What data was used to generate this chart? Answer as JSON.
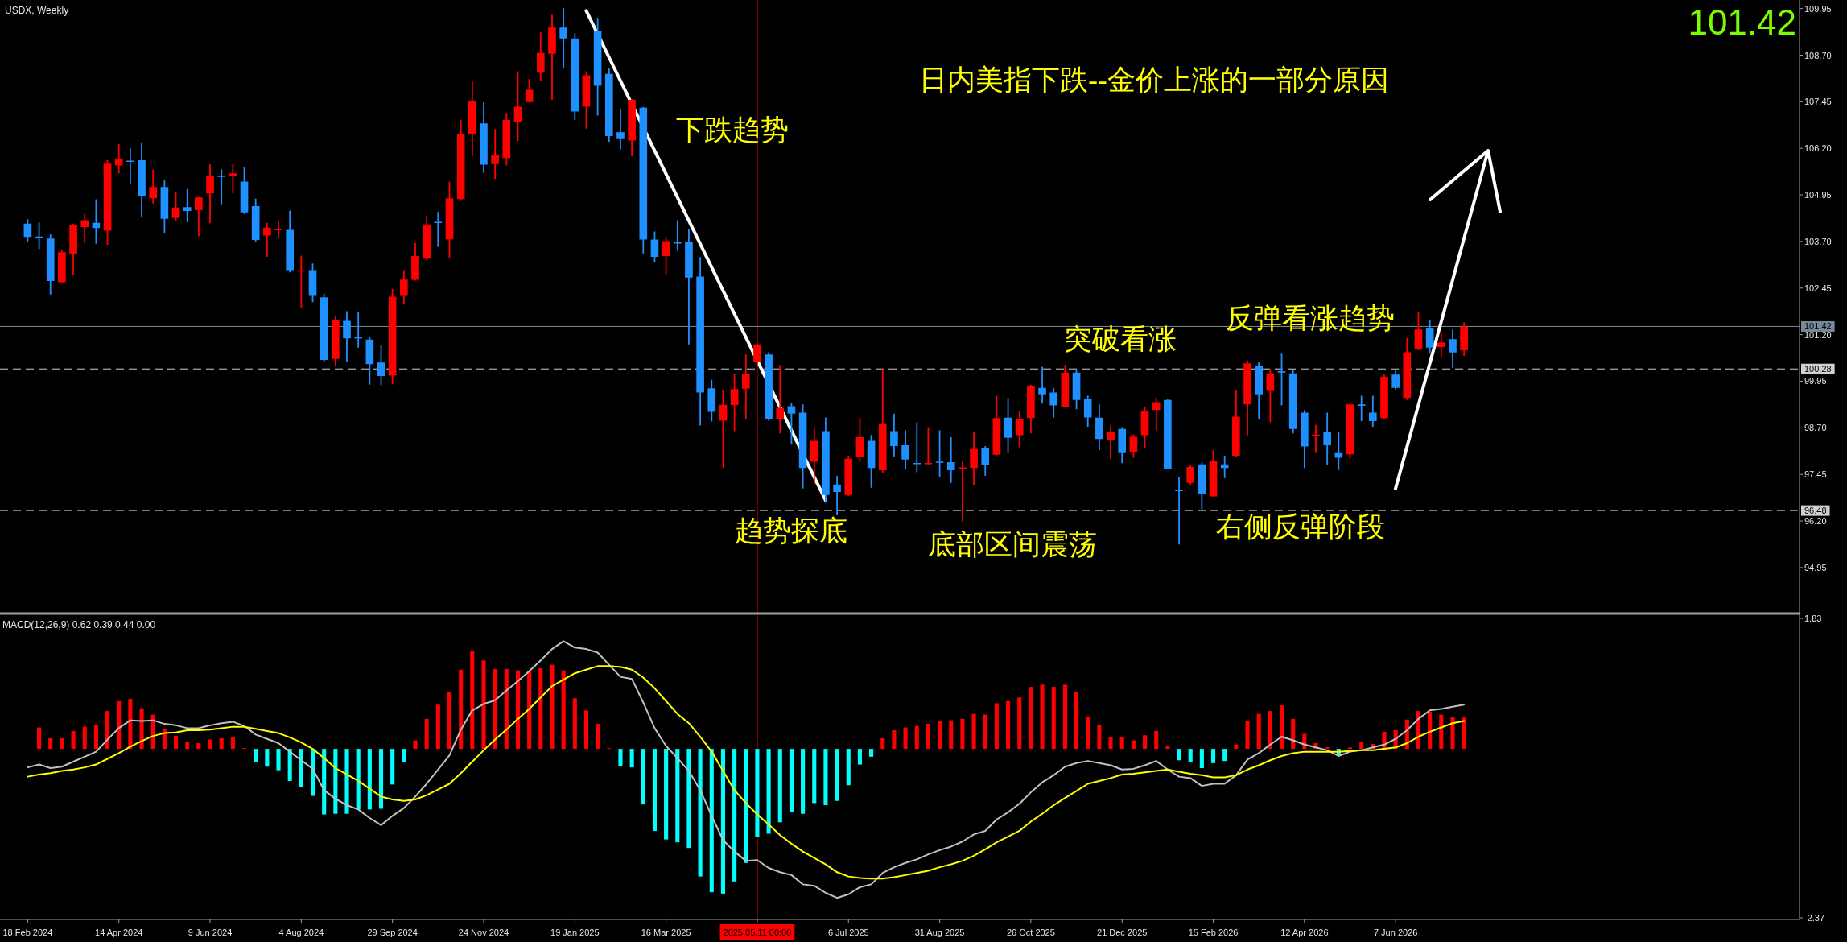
{
  "chart_data": [
    {
      "type": "candlestick",
      "title": "USDX, Weekly",
      "x": [
        "2024-02-18",
        "2024-02-25",
        "2024-03-03",
        "2024-03-10",
        "2024-03-17",
        "2024-03-24",
        "2024-03-31",
        "2024-04-07",
        "2024-04-14",
        "2024-04-21",
        "2024-04-28",
        "2024-05-05",
        "2024-05-12",
        "2024-05-19",
        "2024-05-26",
        "2024-06-02",
        "2024-06-09",
        "2024-06-16",
        "2024-06-23",
        "2024-06-30",
        "2024-07-07",
        "2024-07-14",
        "2024-07-21",
        "2024-07-28",
        "2024-08-04",
        "2024-08-11",
        "2024-08-18",
        "2024-08-25",
        "2024-09-01",
        "2024-09-08",
        "2024-09-15",
        "2024-09-22",
        "2024-09-29",
        "2024-10-06",
        "2024-10-13",
        "2024-10-20",
        "2024-10-27",
        "2024-11-03",
        "2024-11-10",
        "2024-11-17",
        "2024-11-24",
        "2024-12-01",
        "2024-12-08",
        "2024-12-15",
        "2024-12-22",
        "2024-12-29",
        "2025-01-05",
        "2025-01-12",
        "2025-01-19",
        "2025-01-26",
        "2025-02-02",
        "2025-02-09",
        "2025-02-16",
        "2025-02-23",
        "2025-03-02",
        "2025-03-09",
        "2025-03-16",
        "2025-03-23",
        "2025-03-30",
        "2025-04-06",
        "2025-04-13",
        "2025-04-20",
        "2025-04-27",
        "2025-05-04",
        "2025-05-11",
        "2025-05-18",
        "2025-05-25",
        "2025-06-01",
        "2025-06-08",
        "2025-06-15",
        "2025-06-22",
        "2025-06-29",
        "2025-07-06",
        "2025-07-13",
        "2025-07-20",
        "2025-07-27",
        "2025-08-03",
        "2025-08-10",
        "2025-08-17",
        "2025-08-24",
        "2025-08-31",
        "2025-09-07",
        "2025-09-14",
        "2025-09-21",
        "2025-09-28",
        "2025-10-05",
        "2025-10-12",
        "2025-10-19",
        "2025-10-26",
        "2025-11-02",
        "2025-11-09",
        "2025-11-16",
        "2025-11-23",
        "2025-11-30",
        "2025-12-07",
        "2025-12-14",
        "2025-12-21",
        "2025-12-28",
        "2026-01-04",
        "2026-01-11",
        "2026-01-18",
        "2026-01-25",
        "2026-02-01",
        "2026-02-08",
        "2026-02-15",
        "2026-02-22",
        "2026-03-01",
        "2026-03-08",
        "2026-03-15",
        "2026-03-22",
        "2026-03-29",
        "2026-04-05",
        "2026-04-12",
        "2026-04-19",
        "2026-04-26",
        "2026-05-03",
        "2026-05-10",
        "2026-05-17",
        "2026-05-24",
        "2026-05-31",
        "2026-06-07",
        "2026-06-14",
        "2026-06-21",
        "2026-06-28",
        "2026-07-05",
        "2026-07-12",
        "2026-07-19"
      ],
      "ohlc": [
        [
          104.18,
          104.3,
          103.7,
          103.82
        ],
        [
          103.83,
          104.21,
          103.5,
          103.8
        ],
        [
          103.78,
          103.89,
          102.28,
          102.64
        ],
        [
          102.61,
          103.47,
          102.59,
          103.41
        ],
        [
          103.37,
          104.18,
          102.8,
          104.15
        ],
        [
          104.09,
          104.44,
          103.66,
          104.27
        ],
        [
          104.2,
          104.83,
          103.64,
          104.06
        ],
        [
          103.99,
          105.88,
          103.61,
          105.79
        ],
        [
          105.74,
          106.31,
          105.53,
          105.93
        ],
        [
          105.87,
          106.2,
          105.23,
          105.84
        ],
        [
          105.88,
          106.36,
          104.36,
          104.92
        ],
        [
          104.86,
          105.63,
          104.72,
          105.16
        ],
        [
          105.16,
          105.34,
          103.93,
          104.31
        ],
        [
          104.33,
          105.01,
          104.24,
          104.61
        ],
        [
          104.62,
          105.11,
          104.22,
          104.52
        ],
        [
          104.54,
          104.9,
          103.84,
          104.88
        ],
        [
          104.99,
          105.77,
          104.19,
          105.47
        ],
        [
          105.46,
          105.64,
          104.7,
          105.44
        ],
        [
          105.45,
          105.77,
          104.99,
          105.53
        ],
        [
          105.31,
          105.71,
          104.44,
          104.48
        ],
        [
          104.65,
          104.85,
          103.69,
          103.74
        ],
        [
          103.86,
          104.2,
          103.29,
          104.07
        ],
        [
          104.01,
          104.26,
          103.79,
          104.03
        ],
        [
          104.01,
          104.53,
          102.87,
          102.93
        ],
        [
          102.9,
          103.32,
          101.93,
          102.92
        ],
        [
          102.93,
          103.11,
          102.07,
          102.24
        ],
        [
          102.2,
          102.3,
          100.46,
          100.52
        ],
        [
          100.55,
          101.69,
          100.36,
          101.6
        ],
        [
          101.57,
          101.83,
          100.46,
          101.1
        ],
        [
          101.13,
          101.8,
          100.85,
          101.11
        ],
        [
          101.07,
          101.15,
          99.86,
          100.41
        ],
        [
          100.45,
          100.91,
          99.84,
          100.09
        ],
        [
          100.1,
          102.43,
          99.87,
          102.22
        ],
        [
          102.24,
          102.93,
          102.01,
          102.68
        ],
        [
          102.67,
          103.66,
          102.65,
          103.31
        ],
        [
          103.24,
          104.39,
          103.19,
          104.16
        ],
        [
          104.22,
          104.49,
          103.55,
          104.2
        ],
        [
          103.76,
          105.31,
          103.24,
          104.86
        ],
        [
          104.84,
          106.96,
          104.8,
          106.59
        ],
        [
          106.58,
          108.02,
          105.99,
          107.48
        ],
        [
          106.87,
          107.43,
          105.54,
          105.76
        ],
        [
          105.78,
          106.72,
          105.38,
          106.01
        ],
        [
          105.94,
          107.15,
          105.74,
          106.96
        ],
        [
          106.9,
          108.27,
          106.4,
          107.32
        ],
        [
          107.44,
          108.06,
          107.43,
          107.77
        ],
        [
          108.23,
          109.31,
          108.02,
          108.76
        ],
        [
          108.74,
          109.78,
          107.5,
          109.44
        ],
        [
          109.44,
          109.97,
          108.35,
          109.15
        ],
        [
          109.15,
          109.29,
          106.96,
          107.19
        ],
        [
          107.32,
          108.27,
          106.73,
          108.16
        ],
        [
          109.35,
          109.7,
          107.08,
          107.88
        ],
        [
          108.2,
          108.35,
          106.38,
          106.53
        ],
        [
          106.63,
          107.24,
          106.17,
          106.45
        ],
        [
          106.41,
          107.52,
          105.99,
          107.5
        ],
        [
          107.29,
          107.31,
          103.38,
          103.75
        ],
        [
          103.75,
          103.97,
          103.13,
          103.29
        ],
        [
          103.31,
          103.82,
          102.8,
          103.71
        ],
        [
          103.67,
          104.27,
          103.45,
          103.65
        ],
        [
          103.69,
          104.02,
          100.94,
          102.73
        ],
        [
          102.76,
          103.28,
          98.76,
          99.65
        ],
        [
          99.76,
          99.99,
          98.87,
          99.13
        ],
        [
          98.89,
          99.71,
          97.62,
          99.32
        ],
        [
          99.31,
          100.15,
          98.61,
          99.74
        ],
        [
          99.75,
          100.67,
          98.93,
          100.14
        ],
        [
          100.46,
          100.96,
          100.36,
          100.94
        ],
        [
          100.67,
          100.73,
          98.89,
          98.94
        ],
        [
          98.94,
          100.39,
          98.55,
          99.23
        ],
        [
          99.28,
          99.37,
          98.25,
          99.08
        ],
        [
          99.11,
          99.33,
          97.07,
          97.62
        ],
        [
          97.79,
          98.72,
          97.17,
          98.35
        ],
        [
          98.61,
          98.98,
          96.69,
          96.9
        ],
        [
          97.18,
          97.41,
          96.35,
          96.98
        ],
        [
          96.9,
          97.95,
          96.87,
          97.87
        ],
        [
          97.93,
          98.97,
          97.79,
          98.45
        ],
        [
          98.35,
          98.51,
          97.09,
          97.62
        ],
        [
          97.56,
          100.28,
          97.48,
          98.8
        ],
        [
          98.61,
          99.08,
          97.92,
          98.21
        ],
        [
          98.23,
          98.63,
          97.58,
          97.85
        ],
        [
          97.75,
          98.84,
          97.51,
          97.73
        ],
        [
          97.73,
          98.72,
          97.69,
          97.75
        ],
        [
          97.79,
          98.63,
          97.38,
          97.77
        ],
        [
          97.78,
          98.45,
          97.22,
          97.56
        ],
        [
          97.61,
          97.79,
          96.19,
          97.63
        ],
        [
          97.62,
          98.6,
          97.17,
          98.13
        ],
        [
          98.15,
          98.21,
          97.41,
          97.69
        ],
        [
          97.98,
          99.56,
          97.96,
          98.96
        ],
        [
          98.97,
          99.5,
          98.02,
          98.43
        ],
        [
          98.5,
          99.16,
          98.18,
          98.93
        ],
        [
          98.96,
          99.86,
          98.55,
          99.81
        ],
        [
          99.77,
          100.34,
          99.35,
          99.6
        ],
        [
          99.65,
          99.76,
          98.97,
          99.3
        ],
        [
          99.27,
          100.39,
          99.26,
          100.18
        ],
        [
          100.18,
          100.24,
          99.2,
          99.45
        ],
        [
          99.47,
          99.56,
          98.73,
          98.98
        ],
        [
          98.97,
          99.33,
          98.1,
          98.4
        ],
        [
          98.38,
          98.75,
          97.87,
          98.59
        ],
        [
          98.67,
          98.72,
          97.75,
          98.02
        ],
        [
          98.04,
          98.52,
          97.9,
          98.46
        ],
        [
          98.5,
          99.27,
          98.14,
          99.14
        ],
        [
          99.18,
          99.5,
          98.63,
          99.39
        ],
        [
          99.45,
          99.47,
          97.59,
          97.6
        ],
        [
          97.03,
          97.37,
          95.57,
          97.01
        ],
        [
          97.22,
          97.69,
          97.16,
          97.65
        ],
        [
          97.72,
          97.77,
          96.52,
          96.92
        ],
        [
          96.86,
          98.1,
          96.85,
          97.8
        ],
        [
          97.72,
          97.95,
          97.35,
          97.62
        ],
        [
          97.95,
          99.71,
          97.92,
          99.0
        ],
        [
          99.33,
          100.51,
          98.5,
          100.43
        ],
        [
          100.37,
          100.48,
          98.93,
          99.6
        ],
        [
          99.69,
          100.28,
          98.85,
          100.16
        ],
        [
          100.21,
          100.69,
          99.3,
          100.19
        ],
        [
          100.16,
          100.24,
          98.55,
          98.67
        ],
        [
          99.11,
          99.18,
          97.62,
          98.2
        ],
        [
          98.49,
          98.78,
          98.02,
          98.51
        ],
        [
          98.58,
          99.11,
          97.71,
          98.23
        ],
        [
          98.02,
          98.58,
          97.57,
          97.9
        ],
        [
          97.99,
          99.35,
          97.87,
          99.33
        ],
        [
          99.32,
          99.56,
          98.88,
          99.3
        ],
        [
          99.11,
          99.56,
          98.73,
          98.88
        ],
        [
          98.96,
          100.13,
          98.93,
          100.07
        ],
        [
          100.13,
          100.28,
          99.71,
          99.77
        ],
        [
          99.5,
          101.11,
          99.45,
          100.73
        ],
        [
          100.81,
          101.82,
          100.78,
          101.34
        ],
        [
          101.37,
          101.59,
          100.69,
          100.85
        ],
        [
          100.87,
          101.26,
          100.58,
          100.99
        ],
        [
          101.08,
          101.34,
          100.31,
          100.72
        ],
        [
          100.78,
          101.52,
          100.63,
          101.42
        ]
      ],
      "colors": [
        "#1e90ff",
        "#1e90ff",
        "#1e90ff",
        "#ff0000",
        "#ff0000",
        "#ff0000",
        "#1e90ff",
        "#ff0000",
        "#ff0000",
        "#1e90ff",
        "#1e90ff",
        "#ff0000",
        "#1e90ff",
        "#ff0000",
        "#1e90ff",
        "#ff0000",
        "#ff0000",
        "#1e90ff",
        "#ff0000",
        "#1e90ff",
        "#1e90ff",
        "#ff0000",
        "#ff0000",
        "#1e90ff",
        "#ff0000",
        "#1e90ff",
        "#1e90ff",
        "#ff0000",
        "#1e90ff",
        "#1e90ff",
        "#1e90ff",
        "#1e90ff",
        "#ff0000",
        "#ff0000",
        "#ff0000",
        "#ff0000",
        "#1e90ff",
        "#ff0000",
        "#ff0000",
        "#ff0000",
        "#1e90ff",
        "#ff0000",
        "#ff0000",
        "#ff0000",
        "#ff0000",
        "#ff0000",
        "#ff0000",
        "#1e90ff",
        "#1e90ff",
        "#ff0000",
        "#1e90ff",
        "#1e90ff",
        "#1e90ff",
        "#ff0000",
        "#1e90ff",
        "#1e90ff",
        "#ff0000",
        "#1e90ff",
        "#1e90ff",
        "#1e90ff",
        "#1e90ff",
        "#ff0000",
        "#ff0000",
        "#ff0000",
        "#ff0000",
        "#1e90ff",
        "#ff0000",
        "#1e90ff",
        "#1e90ff",
        "#ff0000",
        "#1e90ff",
        "#1e90ff",
        "#ff0000",
        "#ff0000",
        "#1e90ff",
        "#ff0000",
        "#1e90ff",
        "#1e90ff",
        "#1e90ff",
        "#ff0000",
        "#1e90ff",
        "#1e90ff",
        "#ff0000",
        "#ff0000",
        "#1e90ff",
        "#ff0000",
        "#1e90ff",
        "#ff0000",
        "#ff0000",
        "#1e90ff",
        "#1e90ff",
        "#ff0000",
        "#1e90ff",
        "#1e90ff",
        "#1e90ff",
        "#ff0000",
        "#1e90ff",
        "#ff0000",
        "#ff0000",
        "#ff0000",
        "#1e90ff",
        "#1e90ff",
        "#ff0000",
        "#1e90ff",
        "#ff0000",
        "#1e90ff",
        "#ff0000",
        "#ff0000",
        "#1e90ff",
        "#ff0000",
        "#1e90ff",
        "#1e90ff",
        "#1e90ff",
        "#ff0000",
        "#1e90ff",
        "#1e90ff",
        "#ff0000",
        "#1e90ff",
        "#1e90ff",
        "#ff0000",
        "#1e90ff",
        "#ff0000",
        "#ff0000",
        "#1e90ff",
        "#ff0000",
        "#1e90ff",
        "#ff0000"
      ],
      "xlim": [
        "2024-02-01",
        "2027-02-10"
      ],
      "ylim": [
        93.76,
        110.18
      ],
      "yticks": [
        109.95,
        {
          "value": 108.7,
          "label": "108.70"
        },
        107.45,
        {
          "value": 106.2,
          "label": "106.20"
        },
        104.95,
        {
          "value": 103.7,
          "label": "103.70"
        },
        102.45,
        {
          "value": 101.2,
          "label": "101.20"
        },
        99.95,
        {
          "value": 98.7,
          "label": "98.70"
        },
        97.45,
        {
          "value": 96.2,
          "label": "96.20"
        },
        94.95
      ],
      "tick_labels": "y",
      "ref_lines": [
        {
          "axis": "x",
          "value": "2025-05-11",
          "color": "#ff0000"
        },
        {
          "axis": "y",
          "value": 101.42,
          "label": "101.42",
          "color": "#778899"
        },
        {
          "axis": "y",
          "value": 100.28,
          "label": "100.28",
          "color": "#d0d0d0",
          "line_style": "dashed"
        },
        {
          "axis": "y",
          "value": 96.48,
          "label": "96.48",
          "color": "#d0d0d0",
          "line_style": "dashed"
        }
      ],
      "series": [
        {
          "type": "line",
          "x": [
            "2025-01-26",
            "2025-06-22"
          ],
          "values": [
            109.89,
            96.75
          ],
          "color": "#ffffff"
        }
      ],
      "annotations": [
        "101.42",
        "日内美指下跌--金价上涨的一部分原因",
        "下跌趋势",
        "反弹看涨趋势",
        "突破看涨",
        "右侧反弹阶段",
        "趋势探底",
        "底部区间震荡"
      ]
    },
    {
      "type": "bar",
      "title": "MACD(12,26,9) 0.62 0.39 0.44 0.00",
      "x": [
        "2024-02-18",
        "2024-02-25",
        "2024-03-03",
        "2024-03-10",
        "2024-03-17",
        "2024-03-24",
        "2024-03-31",
        "2024-04-07",
        "2024-04-14",
        "2024-04-21",
        "2024-04-28",
        "2024-05-05",
        "2024-05-12",
        "2024-05-19",
        "2024-05-26",
        "2024-06-02",
        "2024-06-09",
        "2024-06-16",
        "2024-06-23",
        "2024-06-30",
        "2024-07-07",
        "2024-07-14",
        "2024-07-21",
        "2024-07-28",
        "2024-08-04",
        "2024-08-11",
        "2024-08-18",
        "2024-08-25",
        "2024-09-01",
        "2024-09-08",
        "2024-09-15",
        "2024-09-22",
        "2024-09-29",
        "2024-10-06",
        "2024-10-13",
        "2024-10-20",
        "2024-10-27",
        "2024-11-03",
        "2024-11-10",
        "2024-11-17",
        "2024-11-24",
        "2024-12-01",
        "2024-12-08",
        "2024-12-15",
        "2024-12-22",
        "2024-12-29",
        "2025-01-05",
        "2025-01-12",
        "2025-01-19",
        "2025-01-26",
        "2025-02-02",
        "2025-02-09",
        "2025-02-16",
        "2025-02-23",
        "2025-03-02",
        "2025-03-09",
        "2025-03-16",
        "2025-03-23",
        "2025-03-30",
        "2025-04-06",
        "2025-04-13",
        "2025-04-20",
        "2025-04-27",
        "2025-05-04",
        "2025-05-11",
        "2025-05-18",
        "2025-05-25",
        "2025-06-01",
        "2025-06-08",
        "2025-06-15",
        "2025-06-22",
        "2025-06-29",
        "2025-07-06",
        "2025-07-13",
        "2025-07-20",
        "2025-07-27",
        "2025-08-03",
        "2025-08-10",
        "2025-08-17",
        "2025-08-24",
        "2025-08-31",
        "2025-09-07",
        "2025-09-14",
        "2025-09-21",
        "2025-09-28",
        "2025-10-05",
        "2025-10-12",
        "2025-10-19",
        "2025-10-26",
        "2025-11-02",
        "2025-11-09",
        "2025-11-16",
        "2025-11-23",
        "2025-11-30",
        "2025-12-07",
        "2025-12-14",
        "2025-12-21",
        "2025-12-28",
        "2026-01-04",
        "2026-01-11",
        "2026-01-18",
        "2026-01-25",
        "2026-02-01",
        "2026-02-08",
        "2026-02-15",
        "2026-02-22",
        "2026-03-01",
        "2026-03-08",
        "2026-03-15",
        "2026-03-22",
        "2026-03-29",
        "2026-04-05",
        "2026-04-12",
        "2026-04-19",
        "2026-04-26",
        "2026-05-03",
        "2026-05-10",
        "2026-05-17",
        "2026-05-24",
        "2026-05-31",
        "2026-06-07",
        "2026-06-14",
        "2026-06-21",
        "2026-06-28",
        "2026-07-05",
        "2026-07-12",
        "2026-07-19"
      ],
      "xlim": [
        "2024-02-01",
        "2027-02-10"
      ],
      "ylim": [
        -2.37,
        1.83
      ],
      "yticks": [
        1.83,
        -2.37
      ],
      "xticks": [
        {
          "value": "2024-02-18",
          "label": "18 Feb 2024"
        },
        {
          "value": "2024-04-14",
          "label": "14 Apr 2024"
        },
        {
          "value": "2024-06-09",
          "label": "9 Jun 2024"
        },
        {
          "value": "2024-08-04",
          "label": "4 Aug 2024"
        },
        {
          "value": "2024-09-29",
          "label": "29 Sep 2024"
        },
        {
          "value": "2024-11-24",
          "label": "24 Nov 2024"
        },
        {
          "value": "2025-01-19",
          "label": "19 Jan 2025"
        },
        {
          "value": "2025-03-16",
          "label": "16 Mar 2025"
        },
        {
          "value": "2025-05-11",
          "label": null
        },
        {
          "value": "2025-07-06",
          "label": "6 Jul 2025"
        },
        {
          "value": "2025-08-31",
          "label": "31 Aug 2025"
        },
        {
          "value": "2025-10-26",
          "label": "26 Oct 2025"
        },
        {
          "value": "2025-12-21",
          "label": "21 Dec 2025"
        },
        {
          "value": "2026-02-15",
          "label": "15 Feb 2026"
        },
        {
          "value": "2026-04-12",
          "label": "12 Apr 2026"
        },
        {
          "value": "2026-06-07",
          "label": "7 Jun 2026"
        }
      ],
      "ref_lines": [
        {
          "axis": "x",
          "value": "2025-05-11",
          "label": "2025.05.11 00:00",
          "color": "#ff0000"
        }
      ],
      "series": [
        {
          "type": "bar",
          "values": [
            null,
            0.3,
            0.15,
            0.15,
            0.25,
            0.31,
            0.33,
            0.53,
            0.67,
            0.7,
            0.57,
            0.48,
            0.28,
            0.18,
            0.1,
            0.08,
            0.13,
            0.15,
            0.16,
            0.01,
            -0.18,
            -0.25,
            -0.3,
            -0.45,
            -0.54,
            -0.66,
            -0.92,
            -0.91,
            -0.91,
            -0.85,
            -0.85,
            -0.84,
            -0.5,
            -0.18,
            0.12,
            0.42,
            0.62,
            0.8,
            1.11,
            1.37,
            1.24,
            1.12,
            1.12,
            1.1,
            1.08,
            1.13,
            1.18,
            1.1,
            0.71,
            0.54,
            0.35,
            0.01,
            -0.24,
            -0.26,
            -0.78,
            -1.15,
            -1.27,
            -1.31,
            -1.39,
            -1.79,
            -2.01,
            -2.03,
            -1.86,
            -1.6,
            -1.24,
            -1.19,
            -1.03,
            -0.88,
            -0.91,
            -0.76,
            -0.79,
            -0.73,
            -0.51,
            -0.22,
            -0.11,
            0.15,
            0.26,
            0.3,
            0.32,
            0.35,
            0.39,
            0.4,
            0.42,
            0.49,
            0.48,
            0.64,
            0.67,
            0.72,
            0.87,
            0.9,
            0.87,
            0.9,
            0.8,
            0.45,
            0.34,
            0.17,
            0.17,
            0.12,
            0.19,
            0.25,
            0.04,
            -0.16,
            -0.18,
            -0.27,
            -0.2,
            -0.17,
            0.06,
            0.39,
            0.49,
            0.53,
            0.61,
            0.42,
            0.21,
            0.08,
            0.02,
            -0.1,
            0.02,
            0.1,
            0.07,
            0.24,
            0.26,
            0.41,
            0.53,
            0.52,
            0.48,
            0.44,
            0.44
          ],
          "colors": [
            null,
            "#ff0000",
            "#ff0000",
            "#ff0000",
            "#ff0000",
            "#ff0000",
            "#ff0000",
            "#ff0000",
            "#ff0000",
            "#ff0000",
            "#ff0000",
            "#ff0000",
            "#ff0000",
            "#ff0000",
            "#ff0000",
            "#ff0000",
            "#ff0000",
            "#ff0000",
            "#ff0000",
            "#ff0000",
            "#00ffff",
            "#00ffff",
            "#00ffff",
            "#00ffff",
            "#00ffff",
            "#00ffff",
            "#00ffff",
            "#00ffff",
            "#00ffff",
            "#00ffff",
            "#00ffff",
            "#00ffff",
            "#00ffff",
            "#00ffff",
            "#ff0000",
            "#ff0000",
            "#ff0000",
            "#ff0000",
            "#ff0000",
            "#ff0000",
            "#ff0000",
            "#ff0000",
            "#ff0000",
            "#ff0000",
            "#ff0000",
            "#ff0000",
            "#ff0000",
            "#ff0000",
            "#ff0000",
            "#ff0000",
            "#ff0000",
            "#ff0000",
            "#00ffff",
            "#00ffff",
            "#00ffff",
            "#00ffff",
            "#00ffff",
            "#00ffff",
            "#00ffff",
            "#00ffff",
            "#00ffff",
            "#00ffff",
            "#00ffff",
            "#00ffff",
            "#00ffff",
            "#00ffff",
            "#00ffff",
            "#00ffff",
            "#00ffff",
            "#00ffff",
            "#00ffff",
            "#00ffff",
            "#00ffff",
            "#00ffff",
            "#00ffff",
            "#ff0000",
            "#ff0000",
            "#ff0000",
            "#ff0000",
            "#ff0000",
            "#ff0000",
            "#ff0000",
            "#ff0000",
            "#ff0000",
            "#ff0000",
            "#ff0000",
            "#ff0000",
            "#ff0000",
            "#ff0000",
            "#ff0000",
            "#ff0000",
            "#ff0000",
            "#ff0000",
            "#ff0000",
            "#ff0000",
            "#ff0000",
            "#ff0000",
            "#ff0000",
            "#ff0000",
            "#ff0000",
            "#ff0000",
            "#00ffff",
            "#00ffff",
            "#00ffff",
            "#00ffff",
            "#00ffff",
            "#ff0000",
            "#ff0000",
            "#ff0000",
            "#ff0000",
            "#ff0000",
            "#ff0000",
            "#ff0000",
            "#ff0000",
            "#ff0000",
            "#00ffff",
            "#ff0000",
            "#ff0000",
            "#ff0000",
            "#ff0000",
            "#ff0000",
            "#ff0000",
            "#ff0000",
            "#ff0000",
            "#ff0000",
            "#ff0000",
            "#ff0000"
          ]
        },
        {
          "type": "line",
          "color": "#c0c0c0",
          "values": [
            -0.26,
            -0.22,
            -0.27,
            -0.25,
            -0.18,
            -0.11,
            -0.04,
            0.13,
            0.29,
            0.4,
            0.39,
            0.4,
            0.35,
            0.33,
            0.29,
            0.29,
            0.33,
            0.36,
            0.38,
            0.32,
            0.2,
            0.14,
            0.08,
            -0.04,
            -0.16,
            -0.28,
            -0.58,
            -0.7,
            -0.79,
            -0.85,
            -0.97,
            -1.07,
            -0.94,
            -0.83,
            -0.67,
            -0.49,
            -0.29,
            -0.09,
            0.27,
            0.54,
            0.63,
            0.68,
            0.82,
            0.95,
            1.09,
            1.24,
            1.4,
            1.51,
            1.42,
            1.4,
            1.35,
            1.18,
            1.01,
            0.98,
            0.65,
            0.29,
            0.04,
            -0.13,
            -0.31,
            -0.58,
            -0.94,
            -1.28,
            -1.44,
            -1.57,
            -1.56,
            -1.67,
            -1.73,
            -1.77,
            -1.9,
            -1.92,
            -2.02,
            -2.09,
            -2.04,
            -1.94,
            -1.9,
            -1.74,
            -1.66,
            -1.6,
            -1.55,
            -1.48,
            -1.42,
            -1.37,
            -1.3,
            -1.2,
            -1.15,
            -0.99,
            -0.89,
            -0.77,
            -0.61,
            -0.47,
            -0.37,
            -0.25,
            -0.2,
            -0.17,
            -0.2,
            -0.23,
            -0.29,
            -0.28,
            -0.23,
            -0.17,
            -0.29,
            -0.39,
            -0.41,
            -0.52,
            -0.49,
            -0.49,
            -0.37,
            -0.15,
            -0.06,
            0.06,
            0.17,
            0.12,
            0.06,
            0.02,
            -0.02,
            -0.1,
            -0.04,
            -0.02,
            0.02,
            0.06,
            0.14,
            0.26,
            0.42,
            0.54,
            0.56,
            0.59,
            0.62
          ]
        },
        {
          "type": "line",
          "color": "#ffff00",
          "values": [
            -0.39,
            -0.36,
            -0.34,
            -0.31,
            -0.29,
            -0.26,
            -0.22,
            -0.14,
            -0.06,
            0.03,
            0.11,
            0.18,
            0.22,
            0.23,
            0.26,
            0.26,
            0.27,
            0.29,
            0.31,
            0.31,
            0.28,
            0.25,
            0.22,
            0.16,
            0.09,
            0.0,
            -0.13,
            -0.27,
            -0.36,
            -0.45,
            -0.56,
            -0.67,
            -0.71,
            -0.73,
            -0.71,
            -0.65,
            -0.57,
            -0.49,
            -0.34,
            -0.18,
            -0.02,
            0.13,
            0.27,
            0.42,
            0.56,
            0.72,
            0.88,
            0.97,
            1.06,
            1.11,
            1.16,
            1.16,
            1.15,
            1.11,
            1.0,
            0.85,
            0.67,
            0.49,
            0.36,
            0.17,
            -0.04,
            -0.31,
            -0.58,
            -0.76,
            -0.92,
            -1.06,
            -1.21,
            -1.33,
            -1.44,
            -1.53,
            -1.62,
            -1.73,
            -1.79,
            -1.81,
            -1.82,
            -1.82,
            -1.8,
            -1.77,
            -1.74,
            -1.71,
            -1.66,
            -1.62,
            -1.57,
            -1.5,
            -1.41,
            -1.31,
            -1.23,
            -1.15,
            -1.02,
            -0.91,
            -0.79,
            -0.69,
            -0.59,
            -0.49,
            -0.45,
            -0.41,
            -0.36,
            -0.35,
            -0.33,
            -0.31,
            -0.29,
            -0.32,
            -0.35,
            -0.37,
            -0.4,
            -0.4,
            -0.37,
            -0.29,
            -0.23,
            -0.16,
            -0.1,
            -0.06,
            -0.04,
            -0.04,
            -0.04,
            -0.04,
            -0.03,
            -0.02,
            -0.02,
            0.0,
            0.02,
            0.08,
            0.17,
            0.24,
            0.3,
            0.36,
            0.39
          ]
        }
      ]
    }
  ]
}
